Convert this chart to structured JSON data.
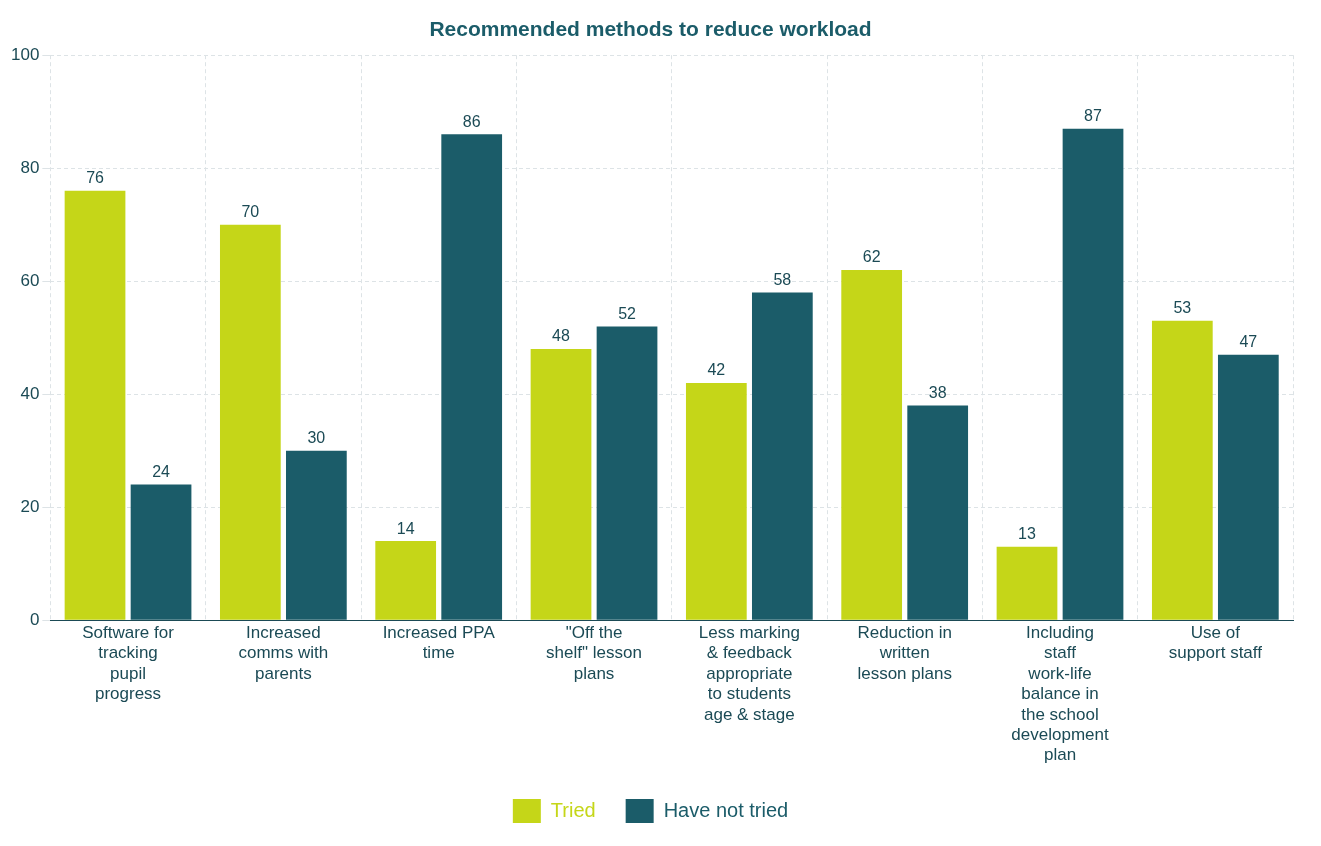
{
  "chart_data": {
    "type": "bar",
    "title": "Recommended methods to reduce workload",
    "categories": [
      "Software for tracking pupil progress",
      "Increased comms with parents",
      "Increased PPA time",
      "\"Off the shelf\" lesson plans",
      "Less marking & feedback appropriate to students age & stage",
      "Reduction in written lesson plans",
      "Including staff work-life balance in the school development plan",
      "Use of support staff"
    ],
    "series": [
      {
        "name": "Tried",
        "color": "#c5d618",
        "values": [
          76,
          70,
          14,
          48,
          42,
          62,
          13,
          53
        ]
      },
      {
        "name": "Have not tried",
        "color": "#1b5c69",
        "values": [
          24,
          30,
          86,
          52,
          58,
          38,
          87,
          47
        ]
      }
    ],
    "ylim": [
      0,
      100
    ],
    "yticks": [
      0,
      20,
      40,
      60,
      80,
      100
    ],
    "grid": true,
    "legend": "bottom",
    "data_labels": true
  }
}
